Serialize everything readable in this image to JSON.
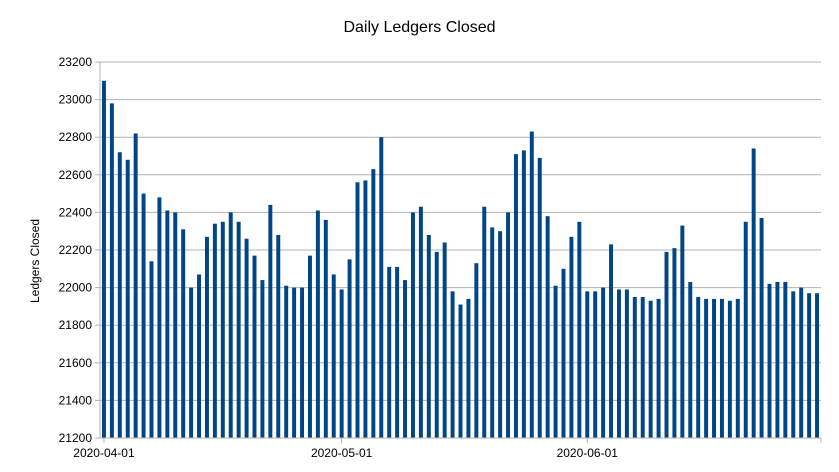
{
  "chart_data": {
    "type": "bar",
    "title": "Daily Ledgers Closed",
    "xlabel": "",
    "ylabel": "Ledgers Closed",
    "ylim": [
      21200,
      23200
    ],
    "yticks": [
      21200,
      21400,
      21600,
      21800,
      22000,
      22200,
      22400,
      22600,
      22800,
      23000,
      23200
    ],
    "grid": true,
    "legend": "none",
    "bar_color": "#004586",
    "x_tick_labels": [
      {
        "date": "2020-04-01",
        "label": "2020-04-01"
      },
      {
        "date": "2020-05-01",
        "label": "2020-05-01"
      },
      {
        "date": "2020-06-01",
        "label": "2020-06-01"
      }
    ],
    "x": [
      "2020-04-01",
      "2020-04-02",
      "2020-04-03",
      "2020-04-04",
      "2020-04-05",
      "2020-04-06",
      "2020-04-07",
      "2020-04-08",
      "2020-04-09",
      "2020-04-10",
      "2020-04-11",
      "2020-04-12",
      "2020-04-13",
      "2020-04-14",
      "2020-04-15",
      "2020-04-16",
      "2020-04-17",
      "2020-04-18",
      "2020-04-19",
      "2020-04-20",
      "2020-04-21",
      "2020-04-22",
      "2020-04-23",
      "2020-04-24",
      "2020-04-25",
      "2020-04-26",
      "2020-04-27",
      "2020-04-28",
      "2020-04-29",
      "2020-04-30",
      "2020-05-01",
      "2020-05-02",
      "2020-05-03",
      "2020-05-04",
      "2020-05-05",
      "2020-05-06",
      "2020-05-07",
      "2020-05-08",
      "2020-05-09",
      "2020-05-10",
      "2020-05-11",
      "2020-05-12",
      "2020-05-13",
      "2020-05-14",
      "2020-05-15",
      "2020-05-16",
      "2020-05-17",
      "2020-05-18",
      "2020-05-19",
      "2020-05-20",
      "2020-05-21",
      "2020-05-22",
      "2020-05-23",
      "2020-05-24",
      "2020-05-25",
      "2020-05-26",
      "2020-05-27",
      "2020-05-28",
      "2020-05-29",
      "2020-05-30",
      "2020-05-31",
      "2020-06-01",
      "2020-06-02",
      "2020-06-03",
      "2020-06-04",
      "2020-06-05",
      "2020-06-06",
      "2020-06-07",
      "2020-06-08",
      "2020-06-09",
      "2020-06-10",
      "2020-06-11",
      "2020-06-12",
      "2020-06-13",
      "2020-06-14",
      "2020-06-15",
      "2020-06-16",
      "2020-06-17",
      "2020-06-18",
      "2020-06-19",
      "2020-06-20",
      "2020-06-21",
      "2020-06-22",
      "2020-06-23",
      "2020-06-24",
      "2020-06-25",
      "2020-06-26",
      "2020-06-27",
      "2020-06-28",
      "2020-06-29",
      "2020-06-30"
    ],
    "values": [
      23100,
      22980,
      22720,
      22680,
      22820,
      22500,
      22140,
      22480,
      22410,
      22400,
      22310,
      22000,
      22070,
      22270,
      22340,
      22350,
      22400,
      22350,
      22260,
      22170,
      22040,
      22440,
      22280,
      22010,
      22000,
      22000,
      22170,
      22410,
      22360,
      22070,
      21990,
      22150,
      22560,
      22570,
      22630,
      22800,
      22110,
      22110,
      22040,
      22400,
      22430,
      22280,
      22190,
      22240,
      21980,
      21910,
      21940,
      22130,
      22430,
      22320,
      22300,
      22400,
      22710,
      22730,
      22830,
      22690,
      22380,
      22010,
      22100,
      22270,
      22350,
      21980,
      21980,
      22000,
      22230,
      21990,
      21990,
      21950,
      21950,
      21930,
      21940,
      22190,
      22210,
      22330,
      22030,
      21950,
      21940,
      21940,
      21940,
      21930,
      21940,
      22350,
      22740,
      22370,
      22020,
      22030,
      22030,
      21980,
      22000,
      21970,
      21970
    ]
  }
}
